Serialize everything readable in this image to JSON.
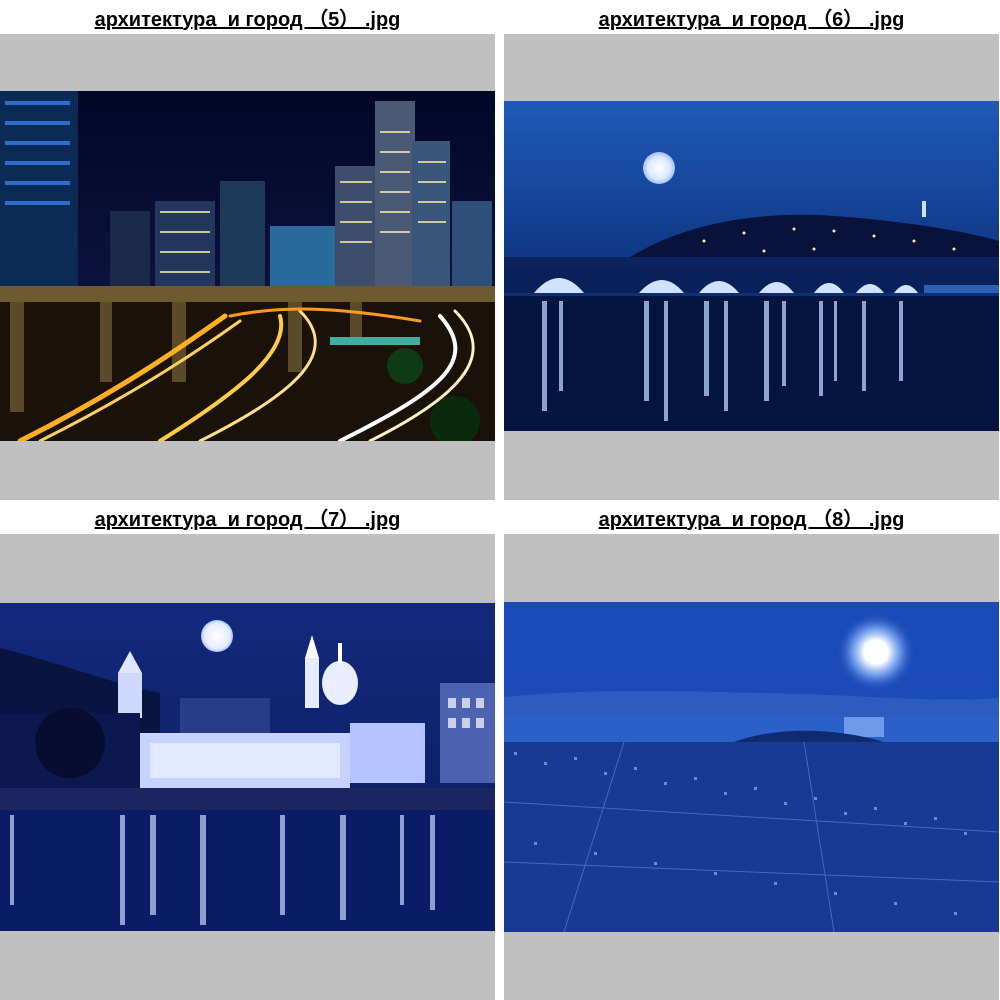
{
  "thumbnails": [
    {
      "filename": "архитектура  и город （5） .jpg",
      "colors": {
        "sky": "#060c32",
        "lights": "#ffb020",
        "accent": "#3a8cff"
      }
    },
    {
      "filename": "архитектура  и город （6） .jpg",
      "colors": {
        "sky": "#1a4ea8",
        "water": "#05163f",
        "glow": "#cfe2ff"
      }
    },
    {
      "filename": "архитектура  и город （7） .jpg",
      "colors": {
        "sky": "#0d1f6e",
        "water": "#0a1b63",
        "glow": "#ffffff"
      }
    },
    {
      "filename": "архитектура  и город （8） .jpg",
      "colors": {
        "sky": "#1c49b8",
        "city": "#1a3f9a",
        "glow": "#ffffff"
      }
    }
  ]
}
